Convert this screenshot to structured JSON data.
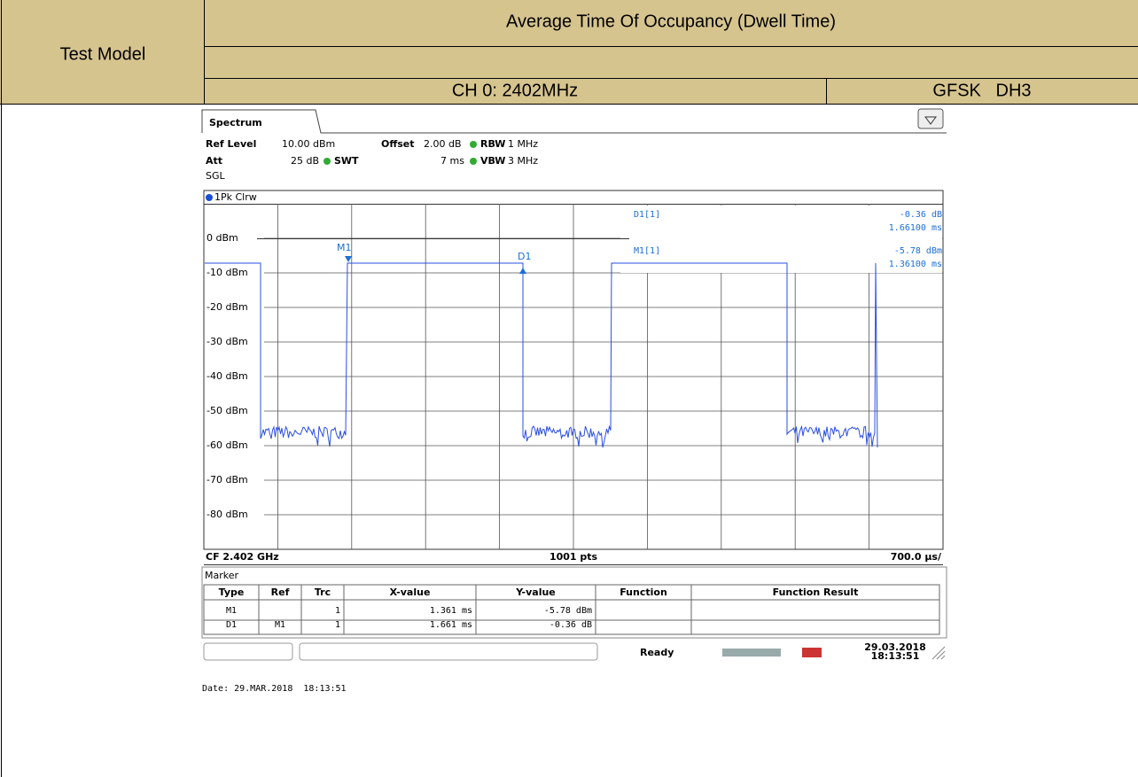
{
  "header": {
    "test_model": "Test Model",
    "title": "Average Time Of Occupancy (Dwell Time)",
    "channel": "CH 0: 2402MHz",
    "mode": "GFSK   DH3"
  },
  "spectrum": {
    "tab": "Spectrum",
    "settings": {
      "ref_level_label": "Ref Level",
      "ref_level": "10.00 dBm",
      "offset_label": "Offset",
      "offset": "2.00 dB",
      "rbw_label": "RBW",
      "rbw": "1 MHz",
      "att_label": "Att",
      "att": "25 dB",
      "swt_label": "SWT",
      "swt": "7 ms",
      "vbw_label": "VBW",
      "vbw": "3 MHz",
      "sweep": "SGL"
    },
    "trace_label": "1Pk Clrw",
    "y_labels": [
      "0 dBm",
      "-10 dBm",
      "-20 dBm",
      "-30 dBm",
      "-40 dBm",
      "-50 dBm",
      "-60 dBm",
      "-70 dBm",
      "-80 dBm"
    ],
    "markers": {
      "m1": "M1",
      "d1": "D1"
    },
    "readout": {
      "d1_name": "D1[1]",
      "d1_y": "-0.36 dB",
      "d1_x": "1.66100 ms",
      "m1_name": "M1[1]",
      "m1_y": "-5.78 dBm",
      "m1_x": "1.36100 ms"
    },
    "footer": {
      "cf": "CF 2.402 GHz",
      "pts": "1001 pts",
      "span": "700.0 µs/"
    },
    "marker_table": {
      "title": "Marker",
      "headers": [
        "Type",
        "Ref",
        "Trc",
        "X-value",
        "Y-value",
        "Function",
        "Function Result"
      ],
      "rows": [
        {
          "type": "M1",
          "trc": "1",
          "x": "1.361 ms",
          "y": "-5.78 dBm"
        },
        {
          "type": "D1",
          "ref": "M1",
          "trc": "1",
          "x": "1.661 ms",
          "y": "-0.36 dB"
        }
      ]
    },
    "status": {
      "state": "Ready",
      "date": "29.03.2018",
      "time": "18:13:51"
    }
  },
  "date_line": "Date: 29.MAR.2018  18:13:51"
}
